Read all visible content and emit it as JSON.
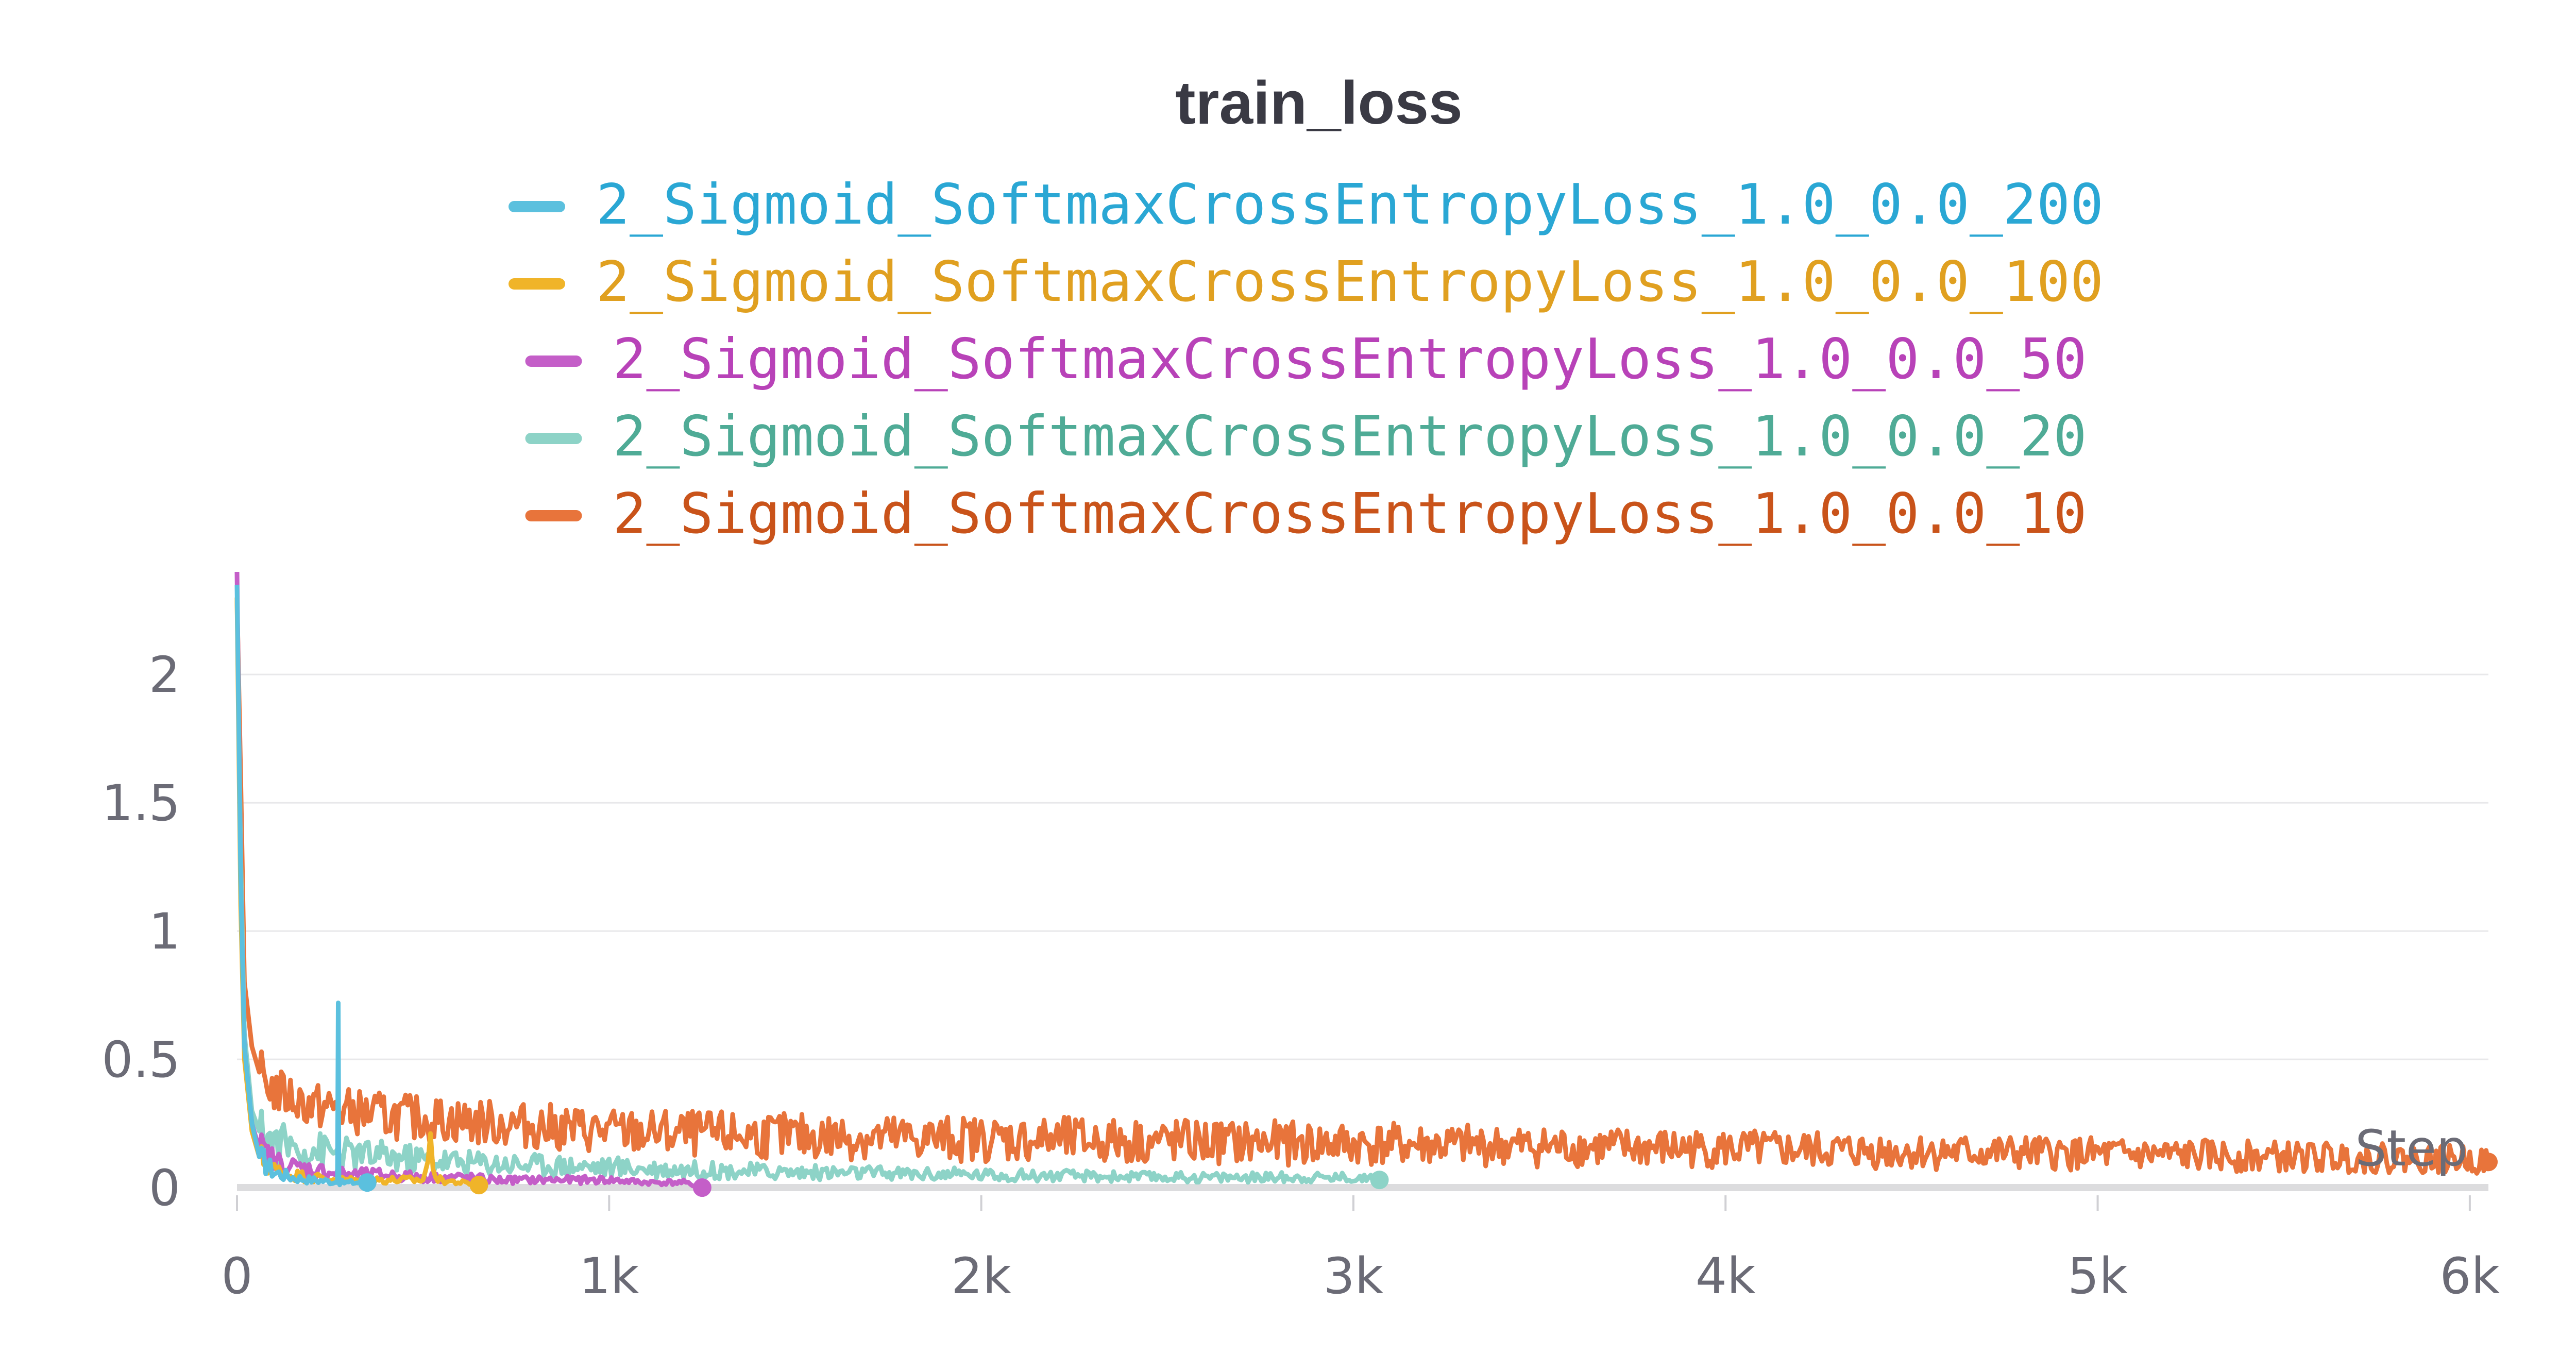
{
  "chart_data": {
    "type": "line",
    "title": "train_loss",
    "xlabel": "Step",
    "ylabel": "",
    "xlim": [
      0,
      6050
    ],
    "ylim": [
      -0.03,
      2.4
    ],
    "x_ticks": [
      0,
      1000,
      2000,
      3000,
      4000,
      5000,
      6000
    ],
    "x_tick_labels": [
      "0",
      "1k",
      "2k",
      "3k",
      "4k",
      "5k",
      "6k"
    ],
    "y_ticks": [
      0,
      0.5,
      1,
      1.5,
      2
    ],
    "y_tick_labels": [
      "0",
      "0.5",
      "1",
      "1.5",
      "2"
    ],
    "grid": true,
    "legend_position": "top-center",
    "series": [
      {
        "name": "2_Sigmoid_SoftmaxCrossEntropyLoss_1.0_0.0_200",
        "color": "#5bc0de",
        "text_color": "#2aa7d4",
        "x": [
          0,
          10,
          20,
          40,
          60,
          100,
          150,
          200,
          250,
          270,
          272,
          274,
          276,
          300,
          350
        ],
        "y": [
          2.35,
          1.2,
          0.55,
          0.25,
          0.12,
          0.06,
          0.04,
          0.03,
          0.025,
          0.02,
          0.72,
          0.03,
          0.02,
          0.02,
          0.02
        ]
      },
      {
        "name": "2_Sigmoid_SoftmaxCrossEntropyLoss_1.0_0.0_100",
        "color": "#f0b429",
        "text_color": "#e0a020",
        "x": [
          0,
          10,
          20,
          40,
          60,
          100,
          150,
          200,
          300,
          400,
          500,
          520,
          540,
          600,
          650
        ],
        "y": [
          2.3,
          1.1,
          0.5,
          0.22,
          0.12,
          0.07,
          0.05,
          0.04,
          0.03,
          0.03,
          0.03,
          0.15,
          0.03,
          0.02,
          0.01
        ]
      },
      {
        "name": "2_Sigmoid_SoftmaxCrossEntropyLoss_1.0_0.0_50",
        "color": "#c45ec8",
        "text_color": "#b842b8",
        "x": [
          0,
          10,
          20,
          40,
          60,
          100,
          150,
          200,
          300,
          400,
          500,
          600,
          700,
          800,
          900,
          1000,
          1100,
          1200,
          1250
        ],
        "y": [
          2.4,
          1.2,
          0.55,
          0.25,
          0.15,
          0.1,
          0.08,
          0.07,
          0.05,
          0.05,
          0.04,
          0.04,
          0.03,
          0.03,
          0.03,
          0.03,
          0.02,
          0.02,
          0.0
        ]
      },
      {
        "name": "2_Sigmoid_SoftmaxCrossEntropyLoss_1.0_0.0_20",
        "color": "#8dd3c7",
        "text_color": "#4fab96",
        "x": [
          0,
          10,
          20,
          40,
          60,
          100,
          150,
          200,
          300,
          400,
          500,
          600,
          800,
          1000,
          1200,
          1500,
          2000,
          2500,
          3000,
          3070
        ],
        "y": [
          2.3,
          1.3,
          0.6,
          0.3,
          0.22,
          0.18,
          0.16,
          0.15,
          0.13,
          0.12,
          0.11,
          0.1,
          0.09,
          0.08,
          0.07,
          0.06,
          0.05,
          0.04,
          0.04,
          0.03
        ]
      },
      {
        "name": "2_Sigmoid_SoftmaxCrossEntropyLoss_1.0_0.0_10",
        "color": "#e8743b",
        "text_color": "#c9531a",
        "x": [
          0,
          10,
          20,
          40,
          60,
          100,
          150,
          200,
          300,
          400,
          500,
          600,
          800,
          1000,
          1200,
          1500,
          2000,
          2500,
          3000,
          3500,
          4000,
          4500,
          5000,
          5500,
          6000,
          6050
        ],
        "y": [
          2.3,
          1.6,
          0.8,
          0.55,
          0.45,
          0.38,
          0.35,
          0.32,
          0.3,
          0.28,
          0.27,
          0.26,
          0.24,
          0.22,
          0.21,
          0.2,
          0.19,
          0.18,
          0.17,
          0.16,
          0.15,
          0.14,
          0.13,
          0.12,
          0.11,
          0.1
        ]
      }
    ]
  }
}
